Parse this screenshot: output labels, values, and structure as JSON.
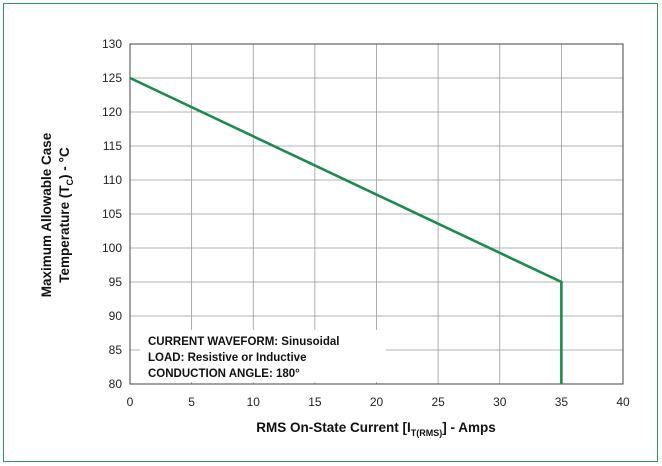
{
  "chart_data": {
    "type": "line",
    "xlabel": {
      "main": "RMS On-State Current [I",
      "sub": "T(RMS)",
      "tail": "] - Amps"
    },
    "ylabel": {
      "line1": "Maximum Allowable Case",
      "line2_pre": "Temperature (T",
      "line2_sub": "C",
      "line2_post": ") - °C"
    },
    "xlim": [
      0,
      40
    ],
    "ylim": [
      80,
      130
    ],
    "x_ticks": [
      0,
      5,
      10,
      15,
      20,
      25,
      30,
      35,
      40
    ],
    "y_ticks": [
      80,
      85,
      90,
      95,
      100,
      105,
      110,
      115,
      120,
      125,
      130
    ],
    "grid": true,
    "series": [
      {
        "x": [
          0,
          35,
          35
        ],
        "y": [
          125,
          95,
          80
        ],
        "color": "#1e8a4f"
      }
    ],
    "annotation": [
      "CURRENT WAVEFORM: Sinusoidal",
      "LOAD: Resistive or Inductive",
      "CONDUCTION ANGLE: 180°"
    ]
  },
  "colors": {
    "frame": "#2e9a63",
    "line": "#1e8a4f",
    "grid": "#9a9a9a"
  }
}
